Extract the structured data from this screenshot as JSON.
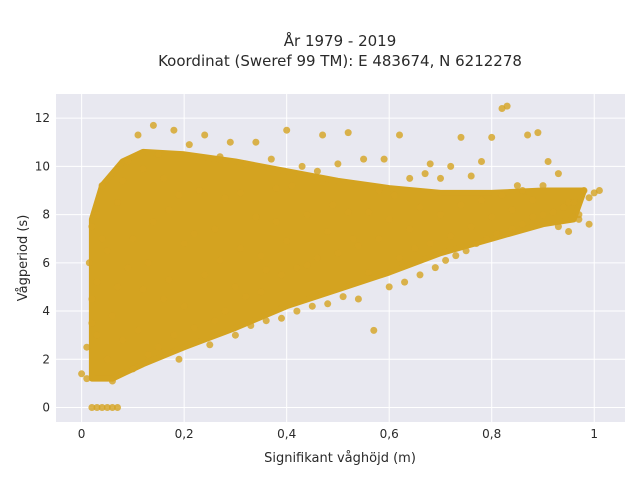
{
  "chart_data": {
    "type": "scatter",
    "title": "År 1979 - 2019",
    "subtitle": "Koordinat (Sweref 99 TM): E 483674, N 6212278",
    "xlabel": "Signifikant våghöjd (m)",
    "ylabel": "Vågperiod (s)",
    "xlim": [
      -0.05,
      1.06
    ],
    "ylim": [
      -0.6,
      13.0
    ],
    "x_ticks": [
      0,
      0.2,
      0.4,
      0.6,
      0.8,
      1
    ],
    "x_tick_labels": [
      "0",
      "0,2",
      "0,4",
      "0,6",
      "0,8",
      "1"
    ],
    "y_ticks": [
      0,
      2,
      4,
      6,
      8,
      10,
      12
    ],
    "y_tick_labels": [
      "0",
      "2",
      "4",
      "6",
      "8",
      "10",
      "12"
    ],
    "grid": true,
    "marker_color": "#d4a320",
    "background_color": "#e8e8f0",
    "series": [
      {
        "points": [
          [
            0.0,
            1.4
          ],
          [
            0.01,
            1.2
          ],
          [
            0.02,
            7.5
          ],
          [
            0.015,
            6.0
          ],
          [
            0.02,
            4.5
          ],
          [
            0.03,
            3.0
          ],
          [
            0.03,
            8.0
          ],
          [
            0.04,
            9.2
          ],
          [
            0.05,
            6.5
          ],
          [
            0.05,
            2.0
          ],
          [
            0.06,
            1.1
          ],
          [
            0.07,
            5.0
          ],
          [
            0.07,
            8.5
          ],
          [
            0.08,
            9.4
          ],
          [
            0.09,
            10.2
          ],
          [
            0.1,
            7.0
          ],
          [
            0.1,
            1.6
          ],
          [
            0.11,
            11.3
          ],
          [
            0.12,
            9.9
          ],
          [
            0.13,
            6.0
          ],
          [
            0.13,
            2.2
          ],
          [
            0.14,
            11.7
          ],
          [
            0.15,
            10.5
          ],
          [
            0.16,
            4.5
          ],
          [
            0.17,
            8.2
          ],
          [
            0.18,
            11.5
          ],
          [
            0.19,
            2.0
          ],
          [
            0.2,
            6.8
          ],
          [
            0.21,
            10.9
          ],
          [
            0.22,
            3.3
          ],
          [
            0.23,
            9.0
          ],
          [
            0.24,
            11.3
          ],
          [
            0.25,
            2.6
          ],
          [
            0.26,
            7.4
          ],
          [
            0.27,
            10.4
          ],
          [
            0.28,
            4.0
          ],
          [
            0.29,
            11.0
          ],
          [
            0.3,
            3.0
          ],
          [
            0.31,
            8.9
          ],
          [
            0.32,
            10.1
          ],
          [
            0.33,
            3.4
          ],
          [
            0.34,
            11.0
          ],
          [
            0.35,
            6.3
          ],
          [
            0.36,
            3.6
          ],
          [
            0.37,
            10.3
          ],
          [
            0.38,
            7.7
          ],
          [
            0.39,
            3.7
          ],
          [
            0.4,
            11.5
          ],
          [
            0.41,
            9.2
          ],
          [
            0.42,
            4.0
          ],
          [
            0.43,
            10.0
          ],
          [
            0.44,
            5.9
          ],
          [
            0.45,
            4.2
          ],
          [
            0.46,
            9.8
          ],
          [
            0.47,
            11.3
          ],
          [
            0.48,
            4.3
          ],
          [
            0.49,
            8.4
          ],
          [
            0.5,
            10.1
          ],
          [
            0.51,
            4.6
          ],
          [
            0.52,
            11.4
          ],
          [
            0.53,
            7.0
          ],
          [
            0.54,
            4.5
          ],
          [
            0.55,
            10.3
          ],
          [
            0.56,
            8.1
          ],
          [
            0.57,
            3.2
          ],
          [
            0.58,
            9.0
          ],
          [
            0.59,
            10.3
          ],
          [
            0.6,
            5.0
          ],
          [
            0.61,
            8.8
          ],
          [
            0.62,
            11.3
          ],
          [
            0.63,
            5.2
          ],
          [
            0.64,
            9.5
          ],
          [
            0.65,
            6.6
          ],
          [
            0.66,
            5.5
          ],
          [
            0.67,
            9.7
          ],
          [
            0.68,
            10.1
          ],
          [
            0.69,
            5.8
          ],
          [
            0.7,
            9.5
          ],
          [
            0.71,
            6.1
          ],
          [
            0.72,
            10.0
          ],
          [
            0.73,
            6.3
          ],
          [
            0.74,
            11.2
          ],
          [
            0.75,
            6.5
          ],
          [
            0.76,
            9.6
          ],
          [
            0.77,
            6.8
          ],
          [
            0.78,
            10.2
          ],
          [
            0.79,
            7.0
          ],
          [
            0.8,
            11.2
          ],
          [
            0.81,
            7.2
          ],
          [
            0.82,
            12.4
          ],
          [
            0.83,
            12.5
          ],
          [
            0.84,
            7.4
          ],
          [
            0.85,
            9.2
          ],
          [
            0.86,
            7.6
          ],
          [
            0.87,
            11.3
          ],
          [
            0.88,
            7.9
          ],
          [
            0.89,
            11.4
          ],
          [
            0.9,
            8.0
          ],
          [
            0.91,
            10.2
          ],
          [
            0.92,
            8.1
          ],
          [
            0.93,
            9.7
          ],
          [
            0.94,
            8.3
          ],
          [
            0.95,
            8.5
          ],
          [
            0.96,
            8.5
          ],
          [
            0.97,
            8.0
          ],
          [
            0.98,
            9.0
          ],
          [
            0.99,
            8.7
          ],
          [
            1.0,
            8.9
          ],
          [
            1.01,
            9.0
          ],
          [
            0.93,
            7.5
          ],
          [
            0.95,
            7.3
          ],
          [
            0.97,
            7.8
          ],
          [
            0.99,
            7.6
          ],
          [
            0.02,
            0.0
          ],
          [
            0.03,
            0.0
          ],
          [
            0.04,
            0.0
          ],
          [
            0.05,
            0.0
          ],
          [
            0.06,
            0.0
          ],
          [
            0.07,
            0.0
          ],
          [
            0.01,
            2.5
          ],
          [
            0.02,
            3.5
          ],
          [
            0.03,
            5.2
          ],
          [
            0.04,
            7.0
          ],
          [
            0.06,
            3.8
          ],
          [
            0.08,
            2.8
          ],
          [
            0.09,
            5.8
          ],
          [
            0.11,
            3.2
          ],
          [
            0.12,
            4.9
          ],
          [
            0.14,
            7.7
          ],
          [
            0.15,
            2.5
          ],
          [
            0.16,
            9.5
          ],
          [
            0.17,
            5.3
          ],
          [
            0.18,
            3.0
          ],
          [
            0.19,
            8.8
          ],
          [
            0.2,
            4.2
          ],
          [
            0.22,
            7.2
          ],
          [
            0.24,
            5.5
          ],
          [
            0.26,
            3.6
          ],
          [
            0.27,
            6.1
          ],
          [
            0.28,
            8.7
          ],
          [
            0.3,
            5.0
          ],
          [
            0.31,
            6.6
          ],
          [
            0.32,
            4.6
          ],
          [
            0.34,
            7.9
          ],
          [
            0.35,
            4.8
          ],
          [
            0.36,
            5.7
          ],
          [
            0.38,
            9.1
          ],
          [
            0.39,
            5.5
          ],
          [
            0.4,
            6.9
          ],
          [
            0.42,
            5.8
          ],
          [
            0.44,
            8.0
          ],
          [
            0.46,
            6.2
          ],
          [
            0.48,
            7.3
          ],
          [
            0.5,
            6.4
          ],
          [
            0.52,
            8.1
          ],
          [
            0.54,
            6.7
          ],
          [
            0.56,
            5.6
          ],
          [
            0.58,
            7.0
          ],
          [
            0.6,
            7.8
          ],
          [
            0.62,
            6.2
          ],
          [
            0.64,
            7.4
          ],
          [
            0.66,
            8.3
          ],
          [
            0.68,
            6.8
          ],
          [
            0.7,
            8.0
          ],
          [
            0.72,
            7.1
          ],
          [
            0.74,
            8.4
          ],
          [
            0.76,
            7.5
          ],
          [
            0.78,
            8.6
          ],
          [
            0.8,
            7.9
          ],
          [
            0.82,
            8.8
          ],
          [
            0.84,
            8.2
          ],
          [
            0.86,
            9.0
          ],
          [
            0.88,
            8.6
          ],
          [
            0.9,
            9.2
          ]
        ]
      }
    ]
  }
}
